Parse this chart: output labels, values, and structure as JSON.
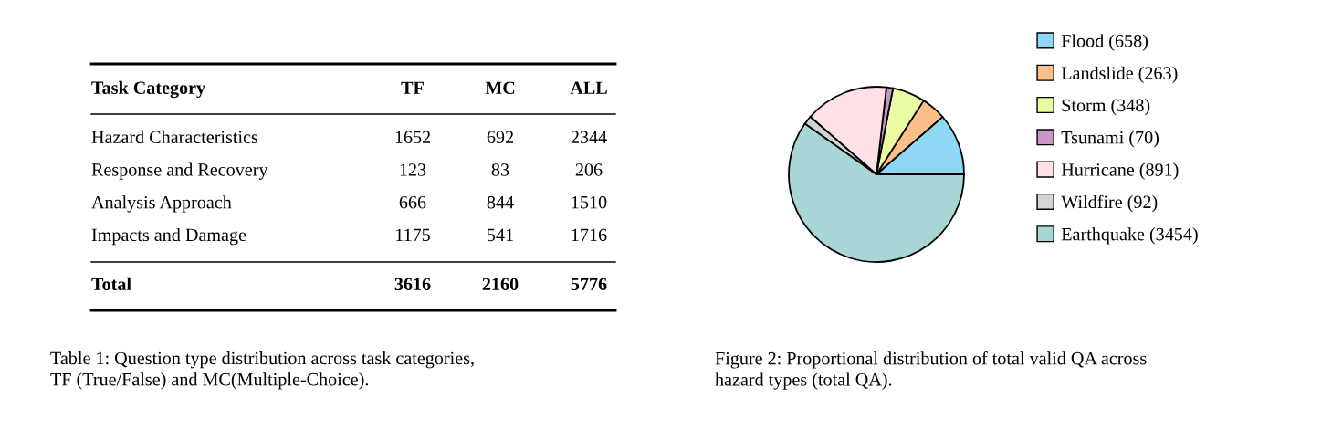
{
  "chart_data": [
    {
      "type": "other",
      "ylabel": "Task Category",
      "categories": [
        "TF",
        "MC",
        "ALL"
      ],
      "y_categories": [
        "Hazard Characteristics",
        "Response and Recovery",
        "Analysis Approach",
        "Impacts and Damage",
        "Total"
      ],
      "cell_labels": [
        [
          "1652",
          "692",
          "2344"
        ],
        [
          "123",
          "83",
          "206"
        ],
        [
          "666",
          "844",
          "1510"
        ],
        [
          "1175",
          "541",
          "1716"
        ],
        [
          "3616",
          "2160",
          "5776"
        ]
      ],
      "annotations": [
        "Table 1: Question type distribution across task categories,\nTF (True/False) and MC(Multiple-Choice)."
      ]
    },
    {
      "type": "pie",
      "categories": [
        "Flood (658)",
        "Landslide (263)",
        "Storm (348)",
        "Tsunami (70)",
        "Hurricane (891)",
        "Wildfire (92)",
        "Earthquake (3454)"
      ],
      "values": [
        658,
        263,
        348,
        70,
        891,
        92,
        3454
      ],
      "colors": [
        "#8fd8f5",
        "#fdbf8a",
        "#e9fba3",
        "#c994c7",
        "#fde1e4",
        "#d4d4d4",
        "#a8d5d5"
      ],
      "legend": "right",
      "annotations": [
        "Figure 2: Proportional distribution of total valid QA across\nhazard types (total QA)."
      ]
    }
  ]
}
